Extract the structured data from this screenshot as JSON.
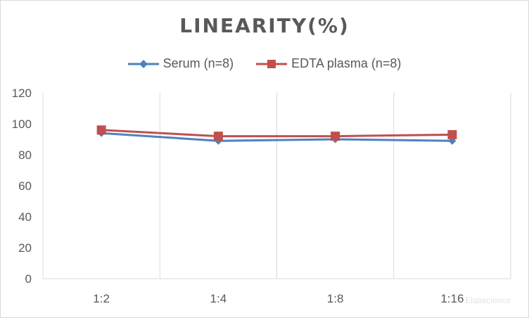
{
  "chart_data": {
    "type": "line",
    "title": "LINEARITY(%)",
    "categories": [
      "1:2",
      "1:4",
      "1:8",
      "1:16"
    ],
    "series": [
      {
        "name": "Serum (n=8)",
        "values": [
          94,
          89,
          90,
          89
        ],
        "color": "#4f81bd",
        "marker": "diamond"
      },
      {
        "name": "EDTA plasma (n=8)",
        "values": [
          96,
          92,
          92,
          93
        ],
        "color": "#c0504d",
        "marker": "square"
      }
    ],
    "ylim": [
      0,
      120
    ],
    "yticks": [
      0,
      20,
      40,
      60,
      80,
      100,
      120
    ],
    "grid": "vertical",
    "legend_position": "top"
  },
  "watermark": "Elabscience"
}
